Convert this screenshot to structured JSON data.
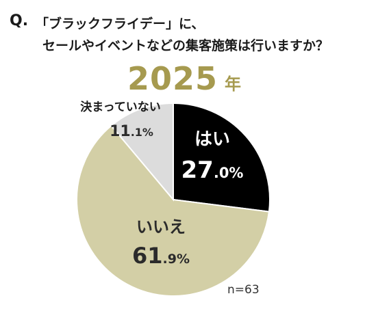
{
  "question": {
    "mark": "Q.",
    "line1": "「ブラックフライデー」に、",
    "line2": "セールやイベントなどの集客施策は行いますか？"
  },
  "year": {
    "number": "2025",
    "unit": "年"
  },
  "sample_size": "n=63",
  "chart_data": {
    "type": "pie",
    "start": "12 o'clock, clockwise",
    "slices": [
      {
        "label": "はい",
        "value": 27.0,
        "display": [
          "27",
          ".0%"
        ],
        "color": "#000000",
        "text_color": "#ffffff"
      },
      {
        "label": "いいえ",
        "value": 61.9,
        "display": [
          "61",
          ".9%"
        ],
        "color": "#d3cfa6",
        "text_color": "#2b2b2b"
      },
      {
        "label": "決まっていない",
        "value": 11.1,
        "display": [
          "11",
          ".1%"
        ],
        "color": "#dcdcdc",
        "text_color": "#2b2b2b"
      }
    ]
  }
}
